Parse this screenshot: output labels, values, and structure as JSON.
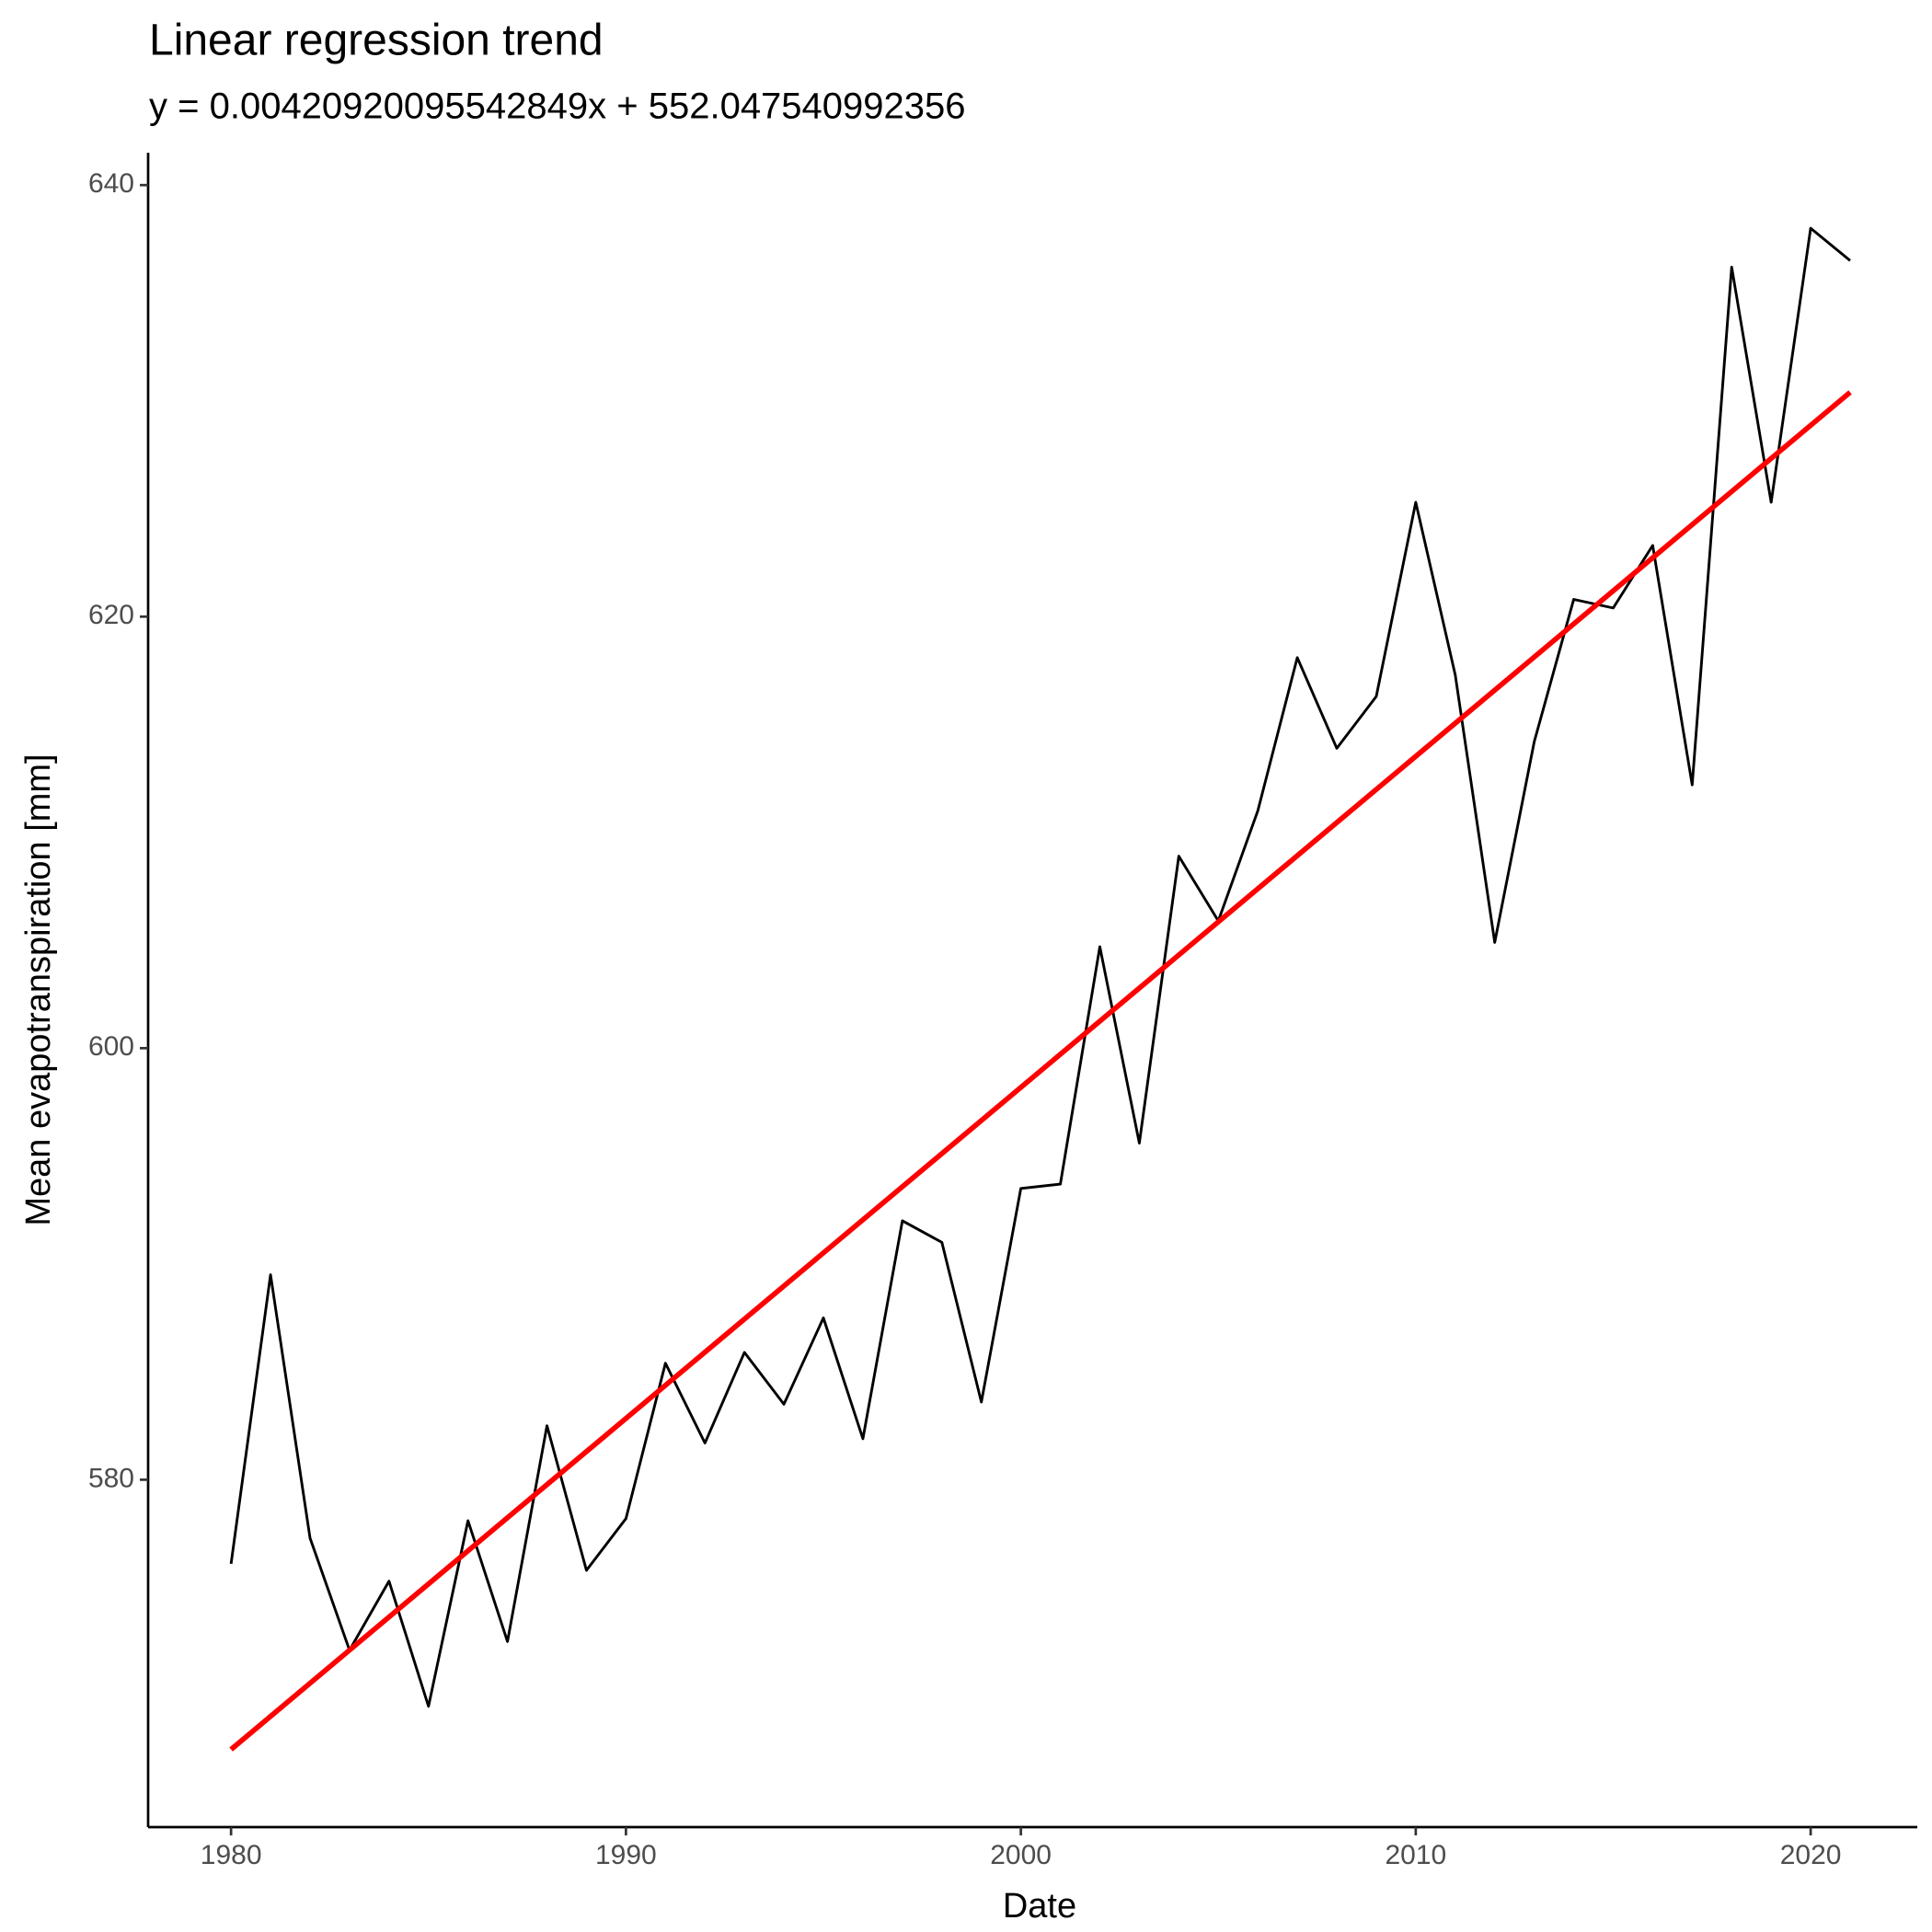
{
  "chart_data": {
    "type": "line",
    "title": "Linear regression trend",
    "subtitle": "y = 0.00420920095542849x + 552.047540992356",
    "x_label": "Date",
    "y_label": "Mean evapotranspiration [mm]",
    "x": [
      1980,
      1981,
      1982,
      1983,
      1984,
      1985,
      1986,
      1987,
      1988,
      1989,
      1990,
      1991,
      1992,
      1993,
      1994,
      1995,
      1996,
      1997,
      1998,
      1999,
      2000,
      2001,
      2002,
      2003,
      2004,
      2005,
      2006,
      2007,
      2008,
      2009,
      2010,
      2011,
      2012,
      2013,
      2014,
      2015,
      2016,
      2017,
      2018,
      2019,
      2020,
      2021
    ],
    "series": [
      {
        "color": "#000000",
        "values": [
          576.1,
          589.5,
          577.3,
          572.1,
          575.3,
          569.5,
          578.1,
          572.5,
          582.5,
          575.8,
          578.2,
          585.4,
          581.7,
          585.9,
          583.5,
          587.5,
          581.9,
          592.0,
          591.0,
          583.6,
          593.5,
          593.7,
          604.7,
          595.6,
          608.9,
          605.9,
          611.0,
          618.1,
          613.9,
          616.3,
          625.3,
          617.3,
          604.9,
          614.2,
          620.8,
          620.4,
          623.3,
          612.2,
          636.2,
          625.3,
          638.0,
          636.5
        ]
      },
      {
        "color": "#ff0000",
        "x": [
          1980,
          2021
        ],
        "values": [
          567.5,
          630.4
        ]
      }
    ],
    "xlim": [
      1977.9,
      2022.7
    ],
    "xticks": [
      1980,
      1990,
      2000,
      2010,
      2020
    ],
    "ylim": [
      563.9,
      641.5
    ],
    "yticks": [
      580,
      600,
      620,
      640
    ]
  }
}
